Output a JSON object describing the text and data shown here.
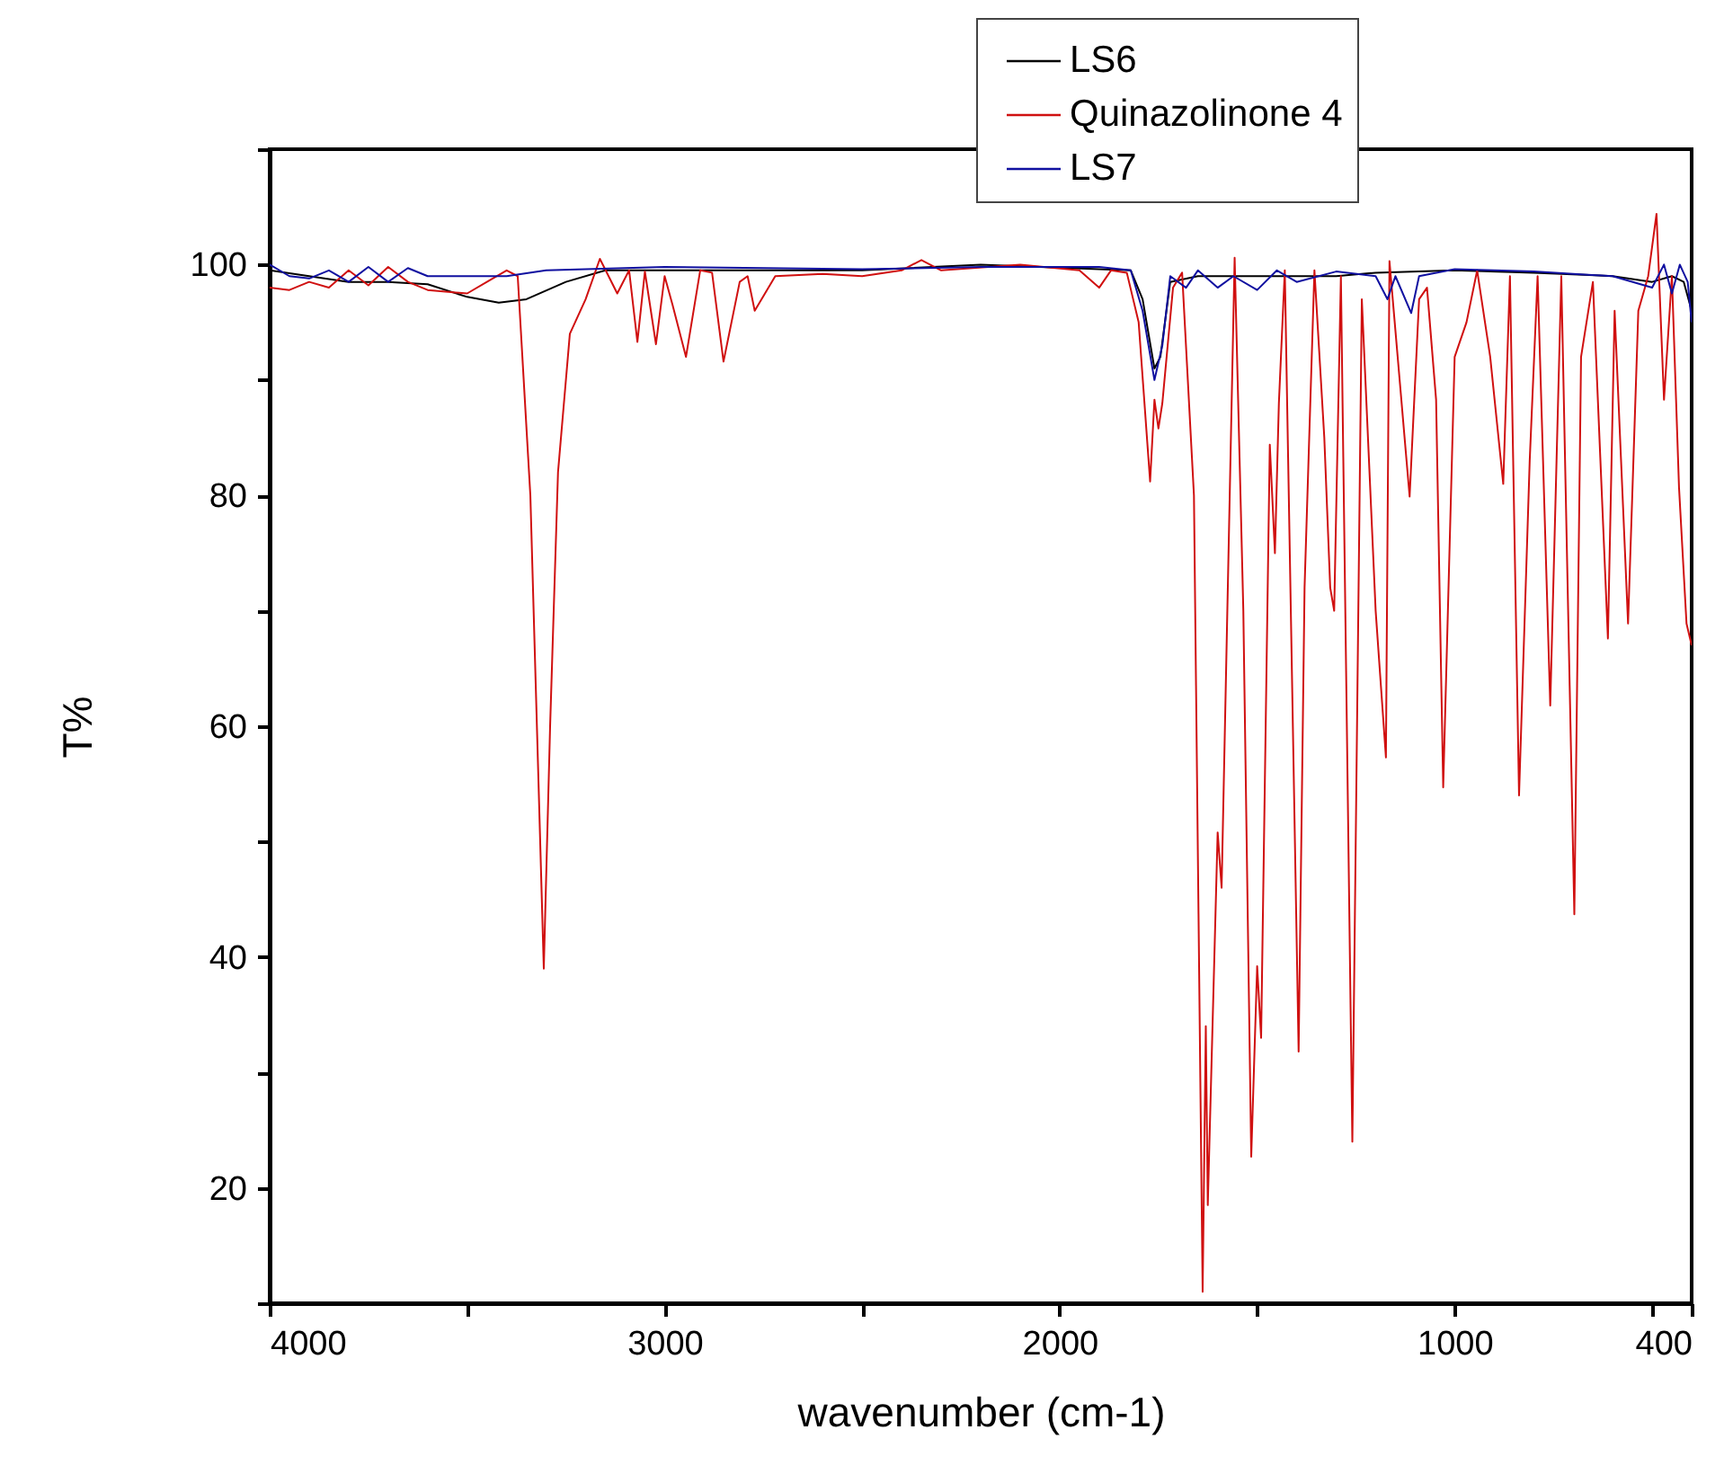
{
  "chart_data": {
    "type": "line",
    "xlabel": "wavenumber (cm-1)",
    "ylabel": "T%",
    "xlim": [
      4000,
      400
    ],
    "ylim": [
      10,
      110
    ],
    "xticks": [
      4000,
      {
        "value": 3500,
        "label": null
      },
      3000,
      {
        "value": 2500,
        "label": null
      },
      2000,
      {
        "value": 1500,
        "label": null
      },
      1000,
      {
        "value": 500,
        "label": null
      },
      400
    ],
    "yticks": [
      {
        "value": 10,
        "label": null
      },
      20,
      {
        "value": 30,
        "label": null
      },
      40,
      {
        "value": 50,
        "label": null
      },
      60,
      {
        "value": 70,
        "label": null
      },
      80,
      {
        "value": 90,
        "label": null
      },
      100,
      {
        "value": 110,
        "label": null
      }
    ],
    "grid": false,
    "legend": "top right",
    "series": [
      {
        "name": "LS6",
        "color": "#000000",
        "x": [
          4000,
          3900,
          3800,
          3700,
          3600,
          3500,
          3420,
          3350,
          3250,
          3150,
          3000,
          2500,
          2200,
          1900,
          1820,
          1790,
          1760,
          1745,
          1720,
          1650,
          1500,
          1300,
          1200,
          1000,
          800,
          600,
          500,
          450,
          420,
          400
        ],
        "values": [
          99.5,
          99,
          98.5,
          98.5,
          98.3,
          97.2,
          96.7,
          97,
          98.5,
          99.5,
          99.5,
          99.5,
          100,
          99.6,
          99.5,
          97,
          91,
          92,
          98.5,
          99,
          99,
          99,
          99.3,
          99.5,
          99.3,
          99,
          98.5,
          99,
          98.5,
          96
        ]
      },
      {
        "name": "Quinazolinone 4",
        "color": "#d01010",
        "x": [
          4000,
          3950,
          3900,
          3850,
          3800,
          3750,
          3700,
          3650,
          3600,
          3500,
          3450,
          3400,
          3372,
          3340,
          3306,
          3290,
          3270,
          3240,
          3200,
          3164,
          3120,
          3090,
          3069,
          3050,
          3022,
          3000,
          2980,
          2946,
          2910,
          2880,
          2851,
          2810,
          2790,
          2772,
          2720,
          2600,
          2500,
          2400,
          2350,
          2300,
          2100,
          1950,
          1900,
          1870,
          1830,
          1800,
          1771,
          1760,
          1750,
          1740,
          1713,
          1690,
          1660,
          1638,
          1630,
          1625,
          1600,
          1590,
          1557,
          1535,
          1515,
          1500,
          1490,
          1468,
          1455,
          1445,
          1430,
          1395,
          1380,
          1355,
          1330,
          1315,
          1305,
          1288,
          1259,
          1235,
          1200,
          1174,
          1165,
          1114,
          1090,
          1070,
          1047,
          1029,
          1000,
          970,
          943,
          910,
          877,
          860,
          837,
          810,
          790,
          758,
          730,
          697,
          680,
          650,
          612,
          595,
          561,
          535,
          510,
          489,
          470,
          450,
          432,
          413,
          400
        ],
        "values": [
          98,
          97.8,
          98.5,
          98,
          99.5,
          98.2,
          99.8,
          98.5,
          97.8,
          97.5,
          98.5,
          99.5,
          99,
          80,
          39,
          60,
          82,
          94,
          97,
          100.5,
          97.5,
          99.5,
          93.3,
          99.4,
          93.1,
          99,
          96.5,
          92,
          99.5,
          99.3,
          91.6,
          98.5,
          99,
          96,
          99,
          99.2,
          99,
          99.5,
          100.4,
          99.5,
          100,
          99.5,
          98,
          99.5,
          99.3,
          95,
          81.2,
          88.3,
          85.8,
          88,
          98,
          99.3,
          80,
          11,
          34,
          18.5,
          50.8,
          46,
          100.6,
          70,
          22.7,
          39.2,
          33,
          84.4,
          75,
          88,
          99.5,
          31.8,
          72,
          99.5,
          85,
          72,
          70,
          99,
          24,
          97,
          70,
          57.3,
          100.3,
          79.9,
          97,
          98,
          88.3,
          54.7,
          92,
          95,
          99.5,
          92,
          81,
          99,
          54,
          83,
          99,
          61.8,
          99,
          43.7,
          92,
          98.5,
          67.6,
          96,
          68.9,
          96,
          99,
          104.4,
          88.3,
          99,
          80.7,
          68.9,
          67
        ]
      },
      {
        "name": "LS7",
        "color": "#1010a0",
        "x": [
          4000,
          3950,
          3900,
          3850,
          3800,
          3750,
          3700,
          3650,
          3600,
          3500,
          3400,
          3300,
          3200,
          3000,
          2500,
          2200,
          1900,
          1820,
          1790,
          1760,
          1740,
          1720,
          1680,
          1650,
          1600,
          1560,
          1500,
          1450,
          1400,
          1300,
          1200,
          1170,
          1150,
          1110,
          1090,
          1000,
          800,
          700,
          600,
          500,
          470,
          450,
          430,
          410,
          400
        ],
        "values": [
          100,
          99,
          98.8,
          99.5,
          98.5,
          99.8,
          98.5,
          99.7,
          99,
          99,
          99,
          99.5,
          99.6,
          99.8,
          99.6,
          99.8,
          99.8,
          99.5,
          96,
          90,
          93,
          99,
          98,
          99.5,
          98,
          99,
          97.8,
          99.5,
          98.5,
          99.4,
          99,
          97,
          99,
          95.8,
          99,
          99.6,
          99.4,
          99.2,
          99,
          98,
          100,
          97.5,
          100,
          98.5,
          95
        ]
      }
    ]
  }
}
